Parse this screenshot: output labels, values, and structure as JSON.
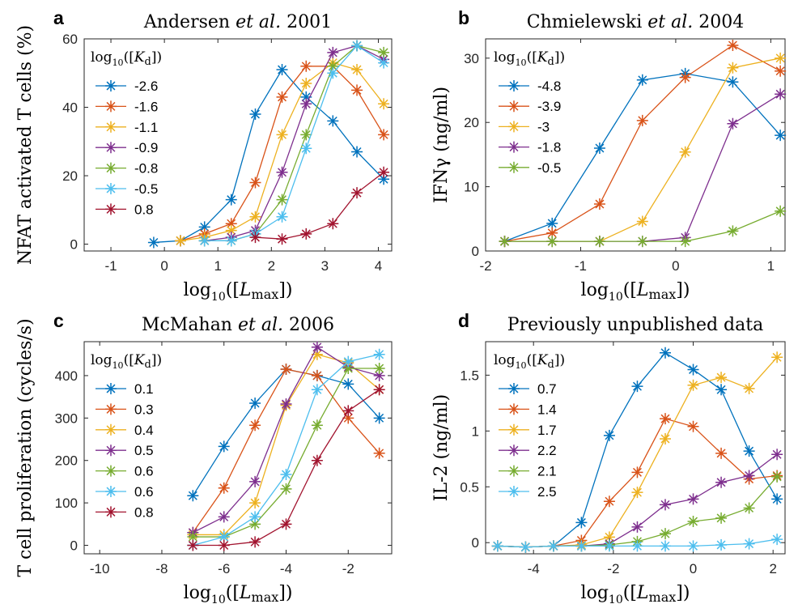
{
  "colors": [
    "#0072bd",
    "#d95319",
    "#edb120",
    "#7e2f8e",
    "#77ac30",
    "#4dbeee",
    "#a2142f"
  ],
  "chart_data": [
    {
      "type": "line",
      "panel_letter": "a",
      "title": "Andersen et al. 2001",
      "title_parts": [
        "Andersen ",
        "et al.",
        " 2001"
      ],
      "ylabel": "NFAT activated T cells (%)",
      "xlabel_pre": "log",
      "xlabel_sub": "10",
      "xlabel_post": "([L",
      "xlabel_msub": "max",
      "xlabel_end": "])",
      "legend_title_pre": "log",
      "legend_title_sub": "10",
      "legend_title_post": "([K",
      "legend_title_msub": "d",
      "legend_title_end": "])",
      "xlim": [
        -1.5,
        4.25
      ],
      "ylim": [
        -2,
        60
      ],
      "xticks": [
        -1,
        0,
        1,
        2,
        3,
        4
      ],
      "yticks": [
        0,
        20,
        40,
        60
      ],
      "xtick_labels": [
        "-1",
        "0",
        "1",
        "2",
        "3",
        "4"
      ],
      "ytick_labels": [
        "0",
        "20",
        "40",
        "60"
      ],
      "series": [
        {
          "name": "-2.6",
          "x": [
            -0.2,
            0.3,
            0.75,
            1.25,
            1.7,
            2.2,
            2.65,
            3.15,
            3.6,
            4.1
          ],
          "y": [
            0.5,
            1,
            5,
            13,
            38,
            51,
            43,
            36,
            27,
            19
          ]
        },
        {
          "name": "-1.6",
          "x": [
            0.3,
            0.75,
            1.25,
            1.7,
            2.2,
            2.65,
            3.15,
            3.6,
            4.1
          ],
          "y": [
            1,
            3,
            6,
            18,
            43,
            52,
            52,
            45,
            32
          ]
        },
        {
          "name": "-1.1",
          "x": [
            0.3,
            0.75,
            1.25,
            1.7,
            2.2,
            2.65,
            3.15,
            3.6,
            4.1
          ],
          "y": [
            1,
            2,
            4,
            8,
            32,
            47,
            53,
            51,
            41
          ]
        },
        {
          "name": "-0.9",
          "x": [
            0.75,
            1.25,
            1.7,
            2.2,
            2.65,
            3.15,
            3.6,
            4.1
          ],
          "y": [
            1,
            2,
            4,
            21,
            41,
            56,
            58,
            54
          ]
        },
        {
          "name": "-0.8",
          "x": [
            0.75,
            1.25,
            1.7,
            2.2,
            2.65,
            3.15,
            3.6,
            4.1
          ],
          "y": [
            1,
            1,
            3,
            13,
            32,
            52,
            58,
            56
          ]
        },
        {
          "name": "-0.5",
          "x": [
            0.75,
            1.25,
            1.7,
            2.2,
            2.65,
            3.15,
            3.6,
            4.1
          ],
          "y": [
            1,
            1,
            3,
            8,
            28,
            50,
            58,
            53
          ]
        },
        {
          "name": "0.8",
          "x": [
            1.7,
            2.2,
            2.65,
            3.15,
            3.6,
            4.1
          ],
          "y": [
            2,
            1.5,
            3,
            6,
            15,
            21
          ]
        }
      ]
    },
    {
      "type": "line",
      "panel_letter": "b",
      "title": "Chmielewski et al. 2004",
      "title_parts": [
        "Chmielewski ",
        "et al.",
        " 2004"
      ],
      "ylabel": "IFNγ (ng/ml)",
      "xlabel_pre": "log",
      "xlabel_sub": "10",
      "xlabel_post": "([L",
      "xlabel_msub": "max",
      "xlabel_end": "])",
      "legend_title_pre": "log",
      "legend_title_sub": "10",
      "legend_title_post": "([K",
      "legend_title_msub": "d",
      "legend_title_end": "])",
      "xlim": [
        -2,
        1.15
      ],
      "ylim": [
        0,
        33
      ],
      "xticks": [
        -2,
        -1,
        0,
        1
      ],
      "yticks": [
        0,
        10,
        20,
        30
      ],
      "xtick_labels": [
        "-2",
        "-1",
        "0",
        "1"
      ],
      "ytick_labels": [
        "0",
        "10",
        "20",
        "30"
      ],
      "series": [
        {
          "name": "-4.8",
          "x": [
            -1.8,
            -1.3,
            -0.8,
            -0.35,
            0.1,
            0.6,
            1.1
          ],
          "y": [
            1.5,
            4.3,
            16,
            26.6,
            27.6,
            26.3,
            18
          ]
        },
        {
          "name": "-3.9",
          "x": [
            -1.8,
            -1.3,
            -0.8,
            -0.35,
            0.1,
            0.6,
            1.1
          ],
          "y": [
            1.5,
            2.8,
            7.3,
            20.3,
            27,
            32,
            28
          ]
        },
        {
          "name": "-3",
          "x": [
            -1.8,
            -1.3,
            -0.8,
            -0.35,
            0.1,
            0.6,
            1.1
          ],
          "y": [
            1.5,
            1.5,
            1.5,
            4.6,
            15.4,
            28.5,
            30
          ]
        },
        {
          "name": "-1.8",
          "x": [
            -1.8,
            -1.3,
            -0.8,
            -0.35,
            0.1,
            0.6,
            1.1
          ],
          "y": [
            1.5,
            1.5,
            1.5,
            1.5,
            2.1,
            19.8,
            24.4
          ]
        },
        {
          "name": "-0.5",
          "x": [
            -1.8,
            -1.3,
            -0.8,
            -0.35,
            0.1,
            0.6,
            1.1
          ],
          "y": [
            1.5,
            1.5,
            1.5,
            1.5,
            1.5,
            3.1,
            6.2
          ]
        }
      ]
    },
    {
      "type": "line",
      "panel_letter": "c",
      "title": "McMahan et al. 2006",
      "title_parts": [
        "McMahan ",
        "et al.",
        " 2006"
      ],
      "ylabel": "T cell proliferation (cycles/s)",
      "xlabel_pre": "log",
      "xlabel_sub": "10",
      "xlabel_post": "([L",
      "xlabel_msub": "max",
      "xlabel_end": "])",
      "legend_title_pre": "log",
      "legend_title_sub": "10",
      "legend_title_post": "([K",
      "legend_title_msub": "d",
      "legend_title_end": "])",
      "xlim": [
        -10.5,
        -0.6
      ],
      "ylim": [
        -20,
        480
      ],
      "xticks": [
        -10,
        -8,
        -6,
        -4,
        -2
      ],
      "yticks": [
        0,
        100,
        200,
        300,
        400
      ],
      "xtick_labels": [
        "-10",
        "-8",
        "-6",
        "-4",
        "-2"
      ],
      "ytick_labels": [
        "0",
        "100",
        "200",
        "300",
        "400"
      ],
      "series": [
        {
          "name": "0.1",
          "x": [
            -7,
            -6,
            -5,
            -4,
            -3,
            -2,
            -1
          ],
          "y": [
            117,
            233,
            335,
            415,
            400,
            380,
            300
          ]
        },
        {
          "name": "0.3",
          "x": [
            -7,
            -6,
            -5,
            -4,
            -3,
            -2,
            -1
          ],
          "y": [
            30,
            135,
            283,
            415,
            400,
            300,
            217
          ]
        },
        {
          "name": "0.4",
          "x": [
            -7,
            -6,
            -5,
            -4,
            -3,
            -2,
            -1
          ],
          "y": [
            25,
            25,
            100,
            330,
            450,
            430,
            367
          ]
        },
        {
          "name": "0.5",
          "x": [
            -7,
            -6,
            -5,
            -4,
            -3,
            -2,
            -1
          ],
          "y": [
            30,
            67,
            150,
            333,
            467,
            420,
            400
          ]
        },
        {
          "name": "0.6",
          "x": [
            -7,
            -6,
            -5,
            -4,
            -3,
            -2,
            -1
          ],
          "y": [
            20,
            20,
            50,
            133,
            283,
            417,
            417
          ]
        },
        {
          "name": "0.6",
          "x": [
            -7,
            -6,
            -5,
            -4,
            -3,
            -2,
            -1
          ],
          "y": [
            0,
            20,
            67,
            167,
            367,
            433,
            450
          ]
        },
        {
          "name": "0.8",
          "x": [
            -7,
            -6,
            -5,
            -4,
            -3,
            -2,
            -1
          ],
          "y": [
            0,
            0,
            8,
            50,
            200,
            317,
            367
          ]
        }
      ]
    },
    {
      "type": "line",
      "panel_letter": "d",
      "title": "Previously unpublished data",
      "title_parts": [
        "Previously unpublished data",
        "",
        ""
      ],
      "ylabel": "IL-2 (ng/ml)",
      "xlabel_pre": "log",
      "xlabel_sub": "10",
      "xlabel_post": "([L",
      "xlabel_msub": "max",
      "xlabel_end": "])",
      "legend_title_pre": "log",
      "legend_title_sub": "10",
      "legend_title_post": "([K",
      "legend_title_msub": "d",
      "legend_title_end": "])",
      "xlim": [
        -5.2,
        2.3
      ],
      "ylim": [
        -0.1,
        1.8
      ],
      "xticks": [
        -4,
        -2,
        0,
        2
      ],
      "yticks": [
        0,
        0.5,
        1,
        1.5
      ],
      "xtick_labels": [
        "-4",
        "-2",
        "0",
        "2"
      ],
      "ytick_labels": [
        "0",
        "0.5",
        "1",
        "1.5"
      ],
      "series": [
        {
          "name": "0.7",
          "x": [
            -4.9,
            -4.2,
            -3.5,
            -2.8,
            -2.1,
            -1.4,
            -0.7,
            0,
            0.7,
            1.4,
            2.1
          ],
          "y": [
            -0.03,
            -0.04,
            -0.03,
            0.18,
            0.96,
            1.4,
            1.7,
            1.55,
            1.37,
            0.82,
            0.39
          ]
        },
        {
          "name": "1.4",
          "x": [
            -4.9,
            -4.2,
            -3.5,
            -2.8,
            -2.1,
            -1.4,
            -0.7,
            0,
            0.7,
            1.4,
            2.1
          ],
          "y": [
            -0.03,
            -0.04,
            -0.03,
            0.02,
            0.37,
            0.63,
            1.11,
            1.04,
            0.8,
            0.57,
            0.6
          ]
        },
        {
          "name": "1.7",
          "x": [
            -4.9,
            -4.2,
            -3.5,
            -2.8,
            -2.1,
            -1.4,
            -0.7,
            0,
            0.7,
            1.4,
            2.1
          ],
          "y": [
            -0.03,
            -0.04,
            -0.03,
            -0.02,
            0.05,
            0.45,
            0.93,
            1.41,
            1.48,
            1.38,
            1.66
          ]
        },
        {
          "name": "2.2",
          "x": [
            -4.9,
            -4.2,
            -3.5,
            -2.8,
            -2.1,
            -1.4,
            -0.7,
            0,
            0.7,
            1.4,
            2.1
          ],
          "y": [
            -0.03,
            -0.04,
            -0.03,
            -0.03,
            -0.01,
            0.14,
            0.34,
            0.39,
            0.54,
            0.6,
            0.79
          ]
        },
        {
          "name": "2.1",
          "x": [
            -4.9,
            -4.2,
            -3.5,
            -2.8,
            -2.1,
            -1.4,
            -0.7,
            0,
            0.7,
            1.4,
            2.1
          ],
          "y": [
            -0.03,
            -0.04,
            -0.03,
            -0.03,
            -0.02,
            0.01,
            0.08,
            0.19,
            0.22,
            0.31,
            0.59
          ]
        },
        {
          "name": "2.5",
          "x": [
            -4.9,
            -4.2,
            -3.5,
            -2.8,
            -2.1,
            -1.4,
            -0.7,
            0,
            0.7,
            1.4,
            2.1
          ],
          "y": [
            -0.03,
            -0.04,
            -0.03,
            -0.03,
            -0.03,
            -0.03,
            -0.03,
            -0.03,
            -0.02,
            -0.01,
            0.03
          ]
        }
      ]
    }
  ]
}
